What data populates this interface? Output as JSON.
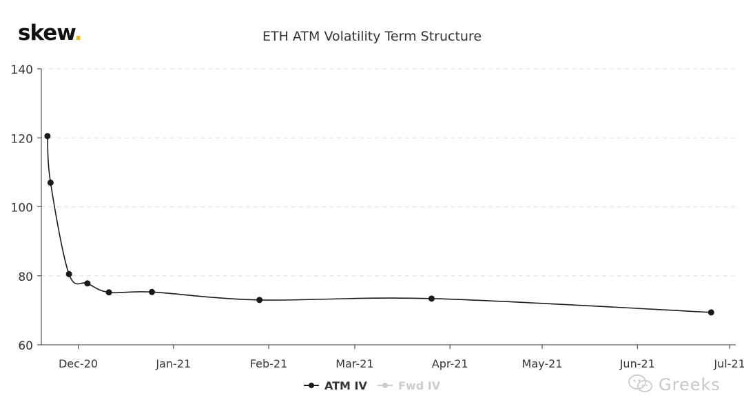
{
  "brand": {
    "name": "skew",
    "dot": "."
  },
  "watermark": {
    "text": "Greeks",
    "icon": "wechat-icon"
  },
  "colors": {
    "series_atm": "#1a1a1a",
    "series_fwd": "#cccccc",
    "grid": "#e3e3e3",
    "axis": "#333333",
    "logo_dot": "#f0b90b"
  },
  "chart_data": {
    "type": "line",
    "title": "ETH ATM Volatility Term Structure",
    "xlabel": "",
    "ylabel": "",
    "x_axis": {
      "type": "date",
      "min": "2020-11-19",
      "max": "2021-07-03"
    },
    "ylim": [
      60,
      140
    ],
    "y_ticks": [
      60,
      80,
      100,
      120,
      140
    ],
    "x_ticks": [
      {
        "label": "Dec-20",
        "date": "2020-12-01"
      },
      {
        "label": "Jan-21",
        "date": "2021-01-01"
      },
      {
        "label": "Feb-21",
        "date": "2021-02-01"
      },
      {
        "label": "Mar-21",
        "date": "2021-03-01"
      },
      {
        "label": "Apr-21",
        "date": "2021-04-01"
      },
      {
        "label": "May-21",
        "date": "2021-05-01"
      },
      {
        "label": "Jun-21",
        "date": "2021-06-01"
      },
      {
        "label": "Jul-21",
        "date": "2021-07-01"
      }
    ],
    "grid": true,
    "legend_position": "bottom-center",
    "series": [
      {
        "name": "ATM IV",
        "visible": true,
        "points": [
          {
            "x": "2020-11-21",
            "y": 120.5
          },
          {
            "x": "2020-11-22",
            "y": 107
          },
          {
            "x": "2020-11-28",
            "y": 80.5
          },
          {
            "x": "2020-12-04",
            "y": 77.8
          },
          {
            "x": "2020-12-11",
            "y": 75.2
          },
          {
            "x": "2020-12-25",
            "y": 75.3
          },
          {
            "x": "2021-01-29",
            "y": 73.0
          },
          {
            "x": "2021-03-26",
            "y": 73.4
          },
          {
            "x": "2021-06-25",
            "y": 69.4
          }
        ]
      },
      {
        "name": "Fwd IV",
        "visible": false,
        "points": []
      }
    ]
  }
}
